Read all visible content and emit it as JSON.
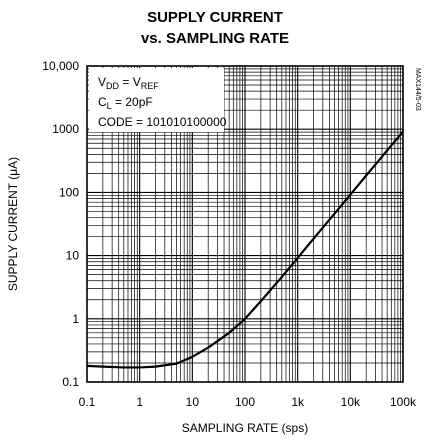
{
  "chart_data": {
    "type": "line",
    "title_lines": [
      "SUPPLY CURRENT",
      "vs. SAMPLING RATE"
    ],
    "xlabel": "SAMPLING RATE (sps)",
    "ylabel": "SUPPLY CURRENT (μA)",
    "x_scale": "log",
    "y_scale": "log",
    "xlim": [
      0.1,
      100000
    ],
    "ylim": [
      0.1,
      10000
    ],
    "x_ticks": [
      {
        "value": 0.1,
        "label": "0.1"
      },
      {
        "value": 1,
        "label": "1"
      },
      {
        "value": 10,
        "label": "10"
      },
      {
        "value": 100,
        "label": "100"
      },
      {
        "value": 1000,
        "label": "1k"
      },
      {
        "value": 10000,
        "label": "10k"
      },
      {
        "value": 100000,
        "label": "100k"
      }
    ],
    "y_ticks": [
      {
        "value": 0.1,
        "label": "0.1"
      },
      {
        "value": 1,
        "label": "1"
      },
      {
        "value": 10,
        "label": "10"
      },
      {
        "value": 100,
        "label": "100"
      },
      {
        "value": 1000,
        "label": "1000"
      },
      {
        "value": 10000,
        "label": "10,000"
      }
    ],
    "grid": true,
    "series": [
      {
        "x": [
          0.1,
          0.2,
          0.5,
          1,
          2,
          5,
          10,
          20,
          50,
          100,
          200,
          500,
          1000,
          2000,
          5000,
          10000,
          20000,
          50000,
          100000
        ],
        "y": [
          0.18,
          0.175,
          0.17,
          0.17,
          0.175,
          0.195,
          0.25,
          0.35,
          0.6,
          1.0,
          1.9,
          4.6,
          9.2,
          18.5,
          46,
          92,
          185,
          460,
          920
        ]
      }
    ],
    "annotations": {
      "vdd_main": "V",
      "vdd_sub": "DD",
      "vdd_eq": " = V",
      "vref_sub": "REF",
      "cl_main": "C",
      "cl_sub": "L",
      "cl_value": " = 20pF",
      "code": "CODE = 101010100000"
    },
    "figure_code": "MAX144/5-03"
  }
}
